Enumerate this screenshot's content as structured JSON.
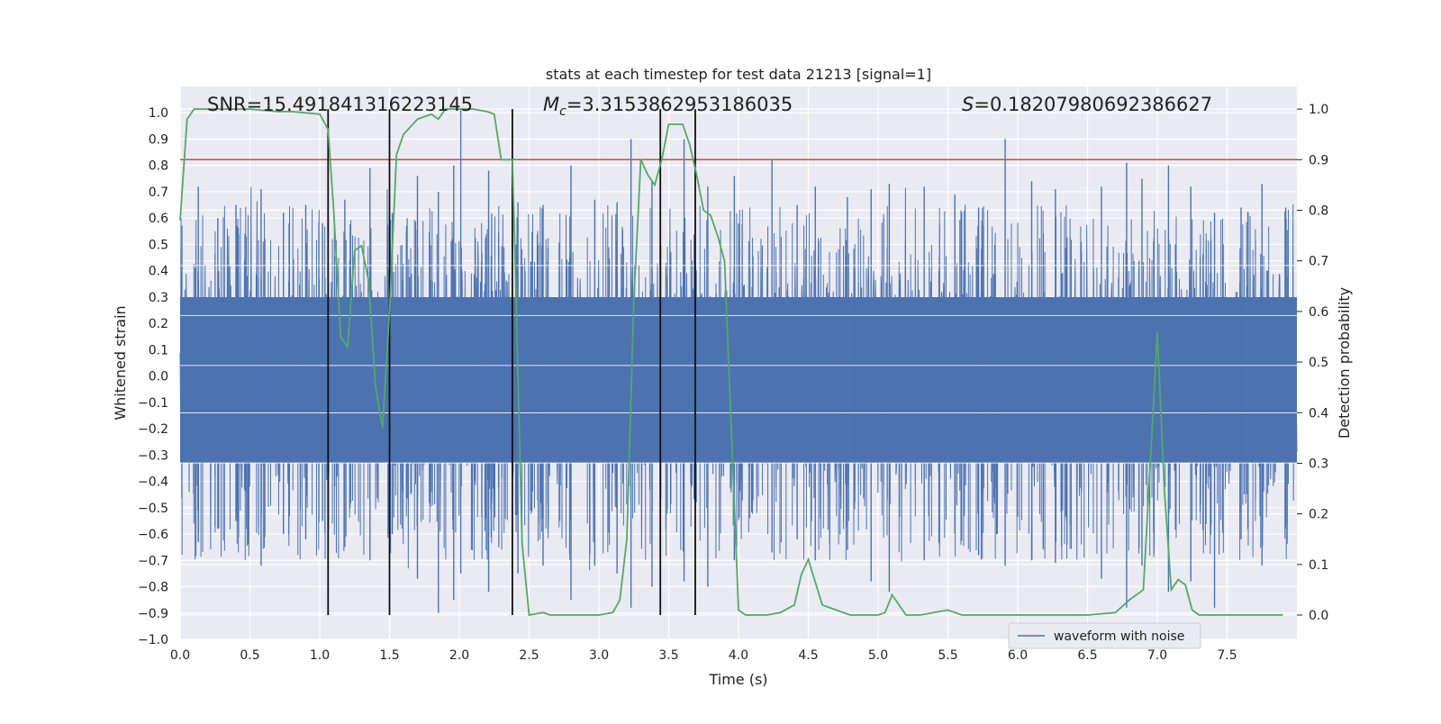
{
  "chart_data": {
    "type": "line",
    "title": "stats at each timestep for test data 21213 [signal=1]",
    "xlabel": "Time (s)",
    "ylabel": "Whitened strain",
    "y2label": "Detection probability",
    "xlim": [
      0.0,
      8.0
    ],
    "ylim": [
      -1.0,
      1.1
    ],
    "y2lim": [
      -0.048,
      1.0447
    ],
    "xticks": [
      "0.0",
      "0.5",
      "1.0",
      "1.5",
      "2.0",
      "2.5",
      "3.0",
      "3.5",
      "4.0",
      "4.5",
      "5.0",
      "5.5",
      "6.0",
      "6.5",
      "7.0",
      "7.5"
    ],
    "yticks": [
      "1.0",
      "0.9",
      "0.8",
      "0.7",
      "0.6",
      "0.5",
      "0.4",
      "0.3",
      "0.2",
      "0.1",
      "0.0",
      "−0.1",
      "−0.2",
      "−0.3",
      "−0.4",
      "−0.5",
      "−0.6",
      "−0.7",
      "−0.8",
      "−0.9",
      "−1.0"
    ],
    "y2ticks": [
      "1.0",
      "0.9",
      "0.8",
      "0.7",
      "0.6",
      "0.5",
      "0.4",
      "0.3",
      "0.2",
      "0.1",
      "0.0"
    ],
    "grid": true,
    "legend_position": "lower-right",
    "annotations": {
      "snr": "SNR=15.491841316223145",
      "mc_symbol": "M",
      "mc_sub": "c",
      "mc_value": "=3.3153862953186035",
      "s_symbol": "S",
      "s_value": "=0.18207980692386627"
    },
    "threshold": {
      "y2": 0.9,
      "color": "#c44e52"
    },
    "vertical_lines": [
      1.06,
      1.5,
      2.38,
      3.44,
      3.69
    ],
    "series": [
      {
        "name": "waveform with noise",
        "color": "#4c72b0",
        "note_bulk": {
          "min": -0.33,
          "max": 0.3
        },
        "peaks": [
          [
            0.13,
            0.72,
            -0.63
          ],
          [
            0.27,
            0.6,
            -0.58
          ],
          [
            0.4,
            0.65,
            -0.55
          ],
          [
            0.58,
            0.71,
            -0.72
          ],
          [
            0.74,
            0.62,
            -0.6
          ],
          [
            0.9,
            0.65,
            -0.62
          ],
          [
            1.02,
            0.58,
            -0.55
          ],
          [
            1.18,
            0.67,
            -0.65
          ],
          [
            1.36,
            0.79,
            -0.7
          ],
          [
            1.52,
            0.62,
            -0.6
          ],
          [
            1.7,
            0.76,
            -0.77
          ],
          [
            1.85,
            0.7,
            -0.9
          ],
          [
            1.96,
            0.8,
            -0.85
          ],
          [
            2.01,
            1.01,
            -0.75
          ],
          [
            2.21,
            0.78,
            -0.82
          ],
          [
            2.42,
            0.66,
            -0.75
          ],
          [
            2.6,
            0.65,
            -0.72
          ],
          [
            2.8,
            0.8,
            -0.85
          ],
          [
            2.97,
            0.67,
            -0.72
          ],
          [
            3.13,
            0.66,
            -0.75
          ],
          [
            3.23,
            0.9,
            -0.88
          ],
          [
            3.38,
            0.74,
            -0.8
          ],
          [
            3.61,
            0.9,
            -0.78
          ],
          [
            3.78,
            0.72,
            -0.8
          ],
          [
            3.97,
            0.76,
            -0.7
          ],
          [
            4.24,
            0.82,
            -0.67
          ],
          [
            4.42,
            0.65,
            -0.62
          ],
          [
            4.55,
            0.72,
            -0.7
          ],
          [
            4.78,
            0.68,
            -0.66
          ],
          [
            4.95,
            0.71,
            -0.78
          ],
          [
            5.08,
            0.73,
            -0.82
          ],
          [
            5.33,
            0.72,
            -0.7
          ],
          [
            5.55,
            0.69,
            -0.6
          ],
          [
            5.72,
            0.64,
            -0.68
          ],
          [
            5.91,
            0.9,
            -0.72
          ],
          [
            6.1,
            0.74,
            -0.7
          ],
          [
            6.27,
            0.71,
            -0.71
          ],
          [
            6.6,
            0.72,
            -0.77
          ],
          [
            6.78,
            0.81,
            -0.88
          ],
          [
            6.89,
            0.75,
            -0.72
          ],
          [
            7.08,
            0.8,
            -0.82
          ],
          [
            7.24,
            0.72,
            -0.78
          ],
          [
            7.41,
            0.62,
            -0.88
          ],
          [
            7.6,
            0.64,
            -0.62
          ],
          [
            7.75,
            0.73,
            -0.72
          ],
          [
            7.92,
            0.64,
            -0.58
          ]
        ]
      },
      {
        "name": "detection probability",
        "color": "#55a868",
        "axis": "y2",
        "x": [
          0.0,
          0.05,
          0.1,
          0.2,
          0.3,
          0.5,
          0.7,
          0.8,
          1.0,
          1.06,
          1.1,
          1.15,
          1.2,
          1.25,
          1.3,
          1.35,
          1.4,
          1.45,
          1.5,
          1.55,
          1.6,
          1.7,
          1.8,
          1.85,
          1.9,
          2.0,
          2.1,
          2.2,
          2.25,
          2.3,
          2.38,
          2.4,
          2.45,
          2.5,
          2.6,
          2.65,
          2.7,
          2.8,
          3.0,
          3.1,
          3.15,
          3.2,
          3.25,
          3.3,
          3.35,
          3.4,
          3.45,
          3.5,
          3.6,
          3.65,
          3.7,
          3.75,
          3.8,
          3.85,
          3.9,
          4.0,
          4.05,
          4.1,
          4.2,
          4.3,
          4.4,
          4.45,
          4.5,
          4.6,
          4.8,
          4.9,
          5.0,
          5.05,
          5.1,
          5.2,
          5.3,
          5.5,
          5.6,
          6.0,
          6.5,
          6.7,
          6.8,
          6.9,
          6.95,
          7.0,
          7.05,
          7.1,
          7.15,
          7.2,
          7.25,
          7.3,
          7.35,
          7.5,
          7.9
        ],
        "y": [
          0.78,
          0.98,
          1.0,
          1.0,
          1.0,
          1.0,
          0.995,
          0.995,
          0.99,
          0.96,
          0.8,
          0.55,
          0.53,
          0.72,
          0.73,
          0.66,
          0.45,
          0.37,
          0.6,
          0.91,
          0.95,
          0.98,
          0.99,
          0.98,
          1.0,
          1.0,
          1.0,
          0.995,
          0.99,
          0.9,
          0.9,
          0.7,
          0.14,
          0.0,
          0.005,
          0.0,
          0.0,
          0.0,
          0.0,
          0.005,
          0.03,
          0.15,
          0.62,
          0.9,
          0.87,
          0.85,
          0.9,
          0.97,
          0.97,
          0.93,
          0.87,
          0.8,
          0.79,
          0.75,
          0.7,
          0.01,
          0.0,
          0.0,
          0.0,
          0.005,
          0.02,
          0.08,
          0.11,
          0.02,
          0.0,
          0.0,
          0.0,
          0.005,
          0.04,
          0.0,
          0.0,
          0.01,
          0.0,
          0.0,
          0.0,
          0.005,
          0.03,
          0.05,
          0.3,
          0.56,
          0.25,
          0.05,
          0.07,
          0.06,
          0.01,
          0.0,
          0.0,
          0.0,
          0.0
        ]
      }
    ]
  }
}
